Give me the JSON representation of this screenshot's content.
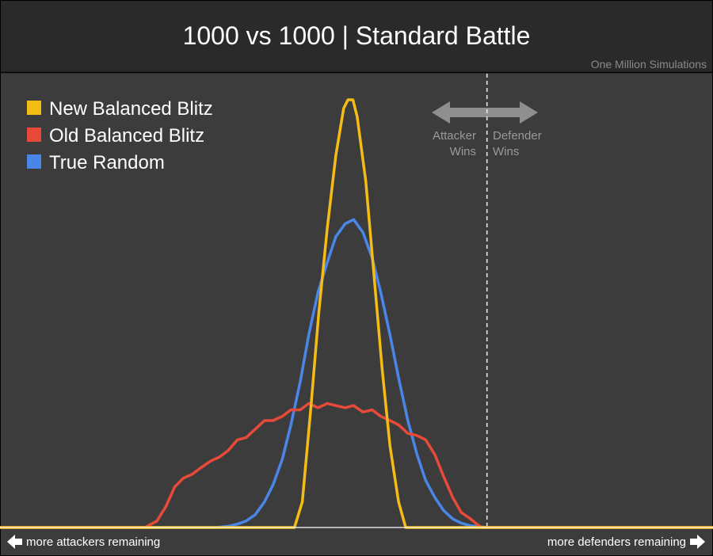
{
  "header": {
    "title": "1000 vs 1000 | Standard Battle",
    "subtitle": "One Million Simulations"
  },
  "annotations": {
    "attacker_wins": [
      "Attacker",
      "Wins"
    ],
    "defender_wins": [
      "Defender",
      "Wins"
    ],
    "left_footer": "more attackers remaining",
    "right_footer": "more defenders remaining"
  },
  "colors": {
    "background": "#3c3c3c",
    "header_bg": "#2a2a2a",
    "new_balanced_blitz": "#f5bc16",
    "old_balanced_blitz": "#e84a3a",
    "true_random": "#4a86e8",
    "divider": "#e6e6e6",
    "annotation": "#9a9a9a"
  },
  "chart_data": {
    "type": "line",
    "title": "1000 vs 1000 | Standard Battle",
    "subtitle": "One Million Simulations",
    "xlabel": "",
    "ylabel": "",
    "x_axis": "outcome: attackers remaining (left) to defenders remaining (right)",
    "xlim": [
      0,
      100
    ],
    "ylim": [
      0,
      100
    ],
    "divider_x": 68.3,
    "grid": false,
    "legend_position": "top-left",
    "series": [
      {
        "name": "New Balanced Blitz",
        "color": "#f5bc16",
        "points": [
          [
            0,
            0
          ],
          [
            41.3,
            0
          ],
          [
            42.4,
            6
          ],
          [
            43.6,
            28
          ],
          [
            44.7,
            50
          ],
          [
            45.9,
            70
          ],
          [
            47.1,
            87
          ],
          [
            48.2,
            98
          ],
          [
            48.8,
            100
          ],
          [
            49.5,
            100
          ],
          [
            50.1,
            96
          ],
          [
            51.3,
            81
          ],
          [
            52.4,
            60
          ],
          [
            53.6,
            37
          ],
          [
            54.7,
            19
          ],
          [
            55.9,
            6
          ],
          [
            56.9,
            0
          ],
          [
            100,
            0
          ]
        ]
      },
      {
        "name": "Old Balanced Blitz",
        "color": "#e84a3a",
        "points": [
          [
            0,
            0
          ],
          [
            20.3,
            0
          ],
          [
            22,
            1.5
          ],
          [
            23.3,
            5
          ],
          [
            24.5,
            9.5
          ],
          [
            25.7,
            11.5
          ],
          [
            27,
            12.5
          ],
          [
            28.2,
            14
          ],
          [
            29.5,
            15.5
          ],
          [
            30.8,
            16.5
          ],
          [
            32,
            18
          ],
          [
            33.3,
            20.5
          ],
          [
            34.5,
            21
          ],
          [
            35.8,
            23
          ],
          [
            37.1,
            25
          ],
          [
            38.3,
            25
          ],
          [
            39.6,
            26
          ],
          [
            40.8,
            27.5
          ],
          [
            42.1,
            27.5
          ],
          [
            43.3,
            29
          ],
          [
            44.6,
            28
          ],
          [
            45.9,
            29
          ],
          [
            47.1,
            28.5
          ],
          [
            48.4,
            28
          ],
          [
            49.6,
            28.5
          ],
          [
            50.9,
            27
          ],
          [
            52.2,
            27.5
          ],
          [
            53.4,
            26
          ],
          [
            54.7,
            25
          ],
          [
            55.9,
            24
          ],
          [
            57.2,
            22
          ],
          [
            58.5,
            21.5
          ],
          [
            59.7,
            20.5
          ],
          [
            61,
            17
          ],
          [
            62.2,
            12
          ],
          [
            63.5,
            7
          ],
          [
            64.7,
            3.5
          ],
          [
            66,
            2
          ],
          [
            67.5,
            0
          ],
          [
            100,
            0
          ]
        ]
      },
      {
        "name": "True Random",
        "color": "#4a86e8",
        "points": [
          [
            0,
            0
          ],
          [
            30.3,
            0
          ],
          [
            32,
            0.3
          ],
          [
            33.3,
            0.8
          ],
          [
            34.5,
            1.5
          ],
          [
            35.8,
            3
          ],
          [
            37.1,
            6
          ],
          [
            38.3,
            10
          ],
          [
            39.6,
            16
          ],
          [
            40.8,
            24
          ],
          [
            42.1,
            34
          ],
          [
            43.3,
            45
          ],
          [
            44.6,
            55
          ],
          [
            45.9,
            62
          ],
          [
            47.1,
            68
          ],
          [
            48.4,
            71
          ],
          [
            49.6,
            72
          ],
          [
            50.9,
            69
          ],
          [
            52.2,
            63
          ],
          [
            53.4,
            55
          ],
          [
            54.7,
            45
          ],
          [
            55.9,
            35
          ],
          [
            57.2,
            25
          ],
          [
            58.5,
            17
          ],
          [
            59.7,
            11
          ],
          [
            61,
            7
          ],
          [
            62.2,
            4
          ],
          [
            63.5,
            2
          ],
          [
            64.7,
            1
          ],
          [
            66,
            0.4
          ],
          [
            68.3,
            0
          ],
          [
            100,
            0
          ]
        ]
      }
    ]
  }
}
